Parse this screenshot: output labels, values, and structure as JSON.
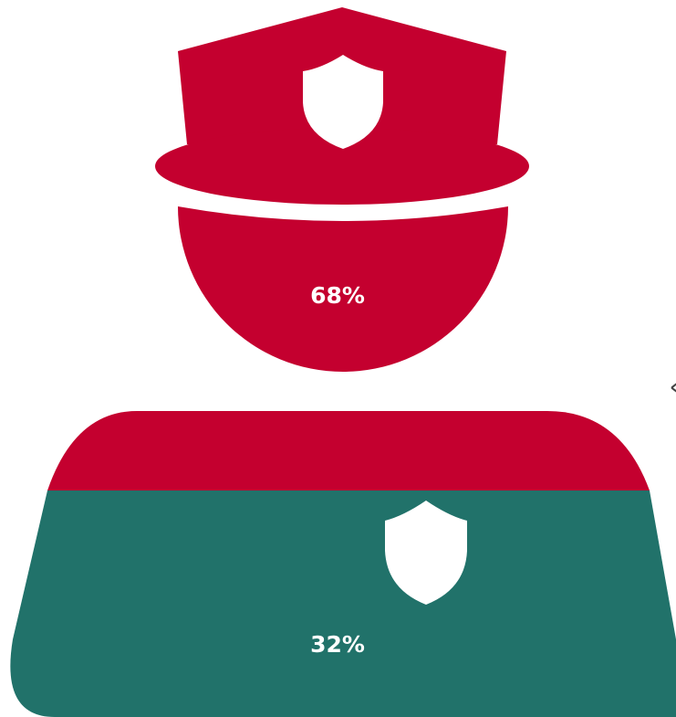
{
  "figure": {
    "segments": [
      {
        "label": "68%",
        "color": "#c4002f"
      },
      {
        "label": "32%",
        "color": "#21726a"
      }
    ],
    "edge_glyph": "‹"
  }
}
